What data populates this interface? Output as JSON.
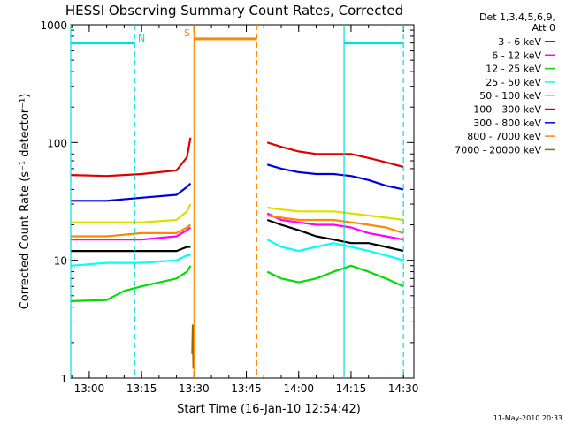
{
  "chart_data": {
    "type": "line",
    "title": "HESSI Observing Summary Count Rates, Corrected",
    "xlabel": "Start Time (16-Jan-10 12:54:42)",
    "ylabel": "Corrected Count Rate (s⁻¹ detector⁻¹)",
    "y_scale": "log",
    "ylim": [
      1,
      1000
    ],
    "xlim_minutes": [
      12.9,
      14.55
    ],
    "x_ticks": [
      {
        "value": "13:00",
        "label": "13:00"
      },
      {
        "value": "13:15",
        "label": "13:15"
      },
      {
        "value": "13:30",
        "label": "13:30"
      },
      {
        "value": "13:45",
        "label": "13:45"
      },
      {
        "value": "14:00",
        "label": "14:00"
      },
      {
        "value": "14:15",
        "label": "14:15"
      },
      {
        "value": "14:30",
        "label": "14:30"
      }
    ],
    "y_ticks": [
      {
        "value": 1,
        "label": "1"
      },
      {
        "value": 10,
        "label": "10"
      },
      {
        "value": 100,
        "label": "100"
      },
      {
        "value": 1000,
        "label": "1000"
      }
    ],
    "legend_header": [
      "Det 1,3,4,5,6,9,",
      "Att 0"
    ],
    "series": [
      {
        "name": "3 - 6 keV",
        "color": "#000000",
        "segments": [
          [
            [
              "12:54:42",
              12
            ],
            [
              "13:05",
              12
            ],
            [
              "13:15",
              12
            ],
            [
              "13:25",
              12
            ],
            [
              "13:28",
              13
            ],
            [
              "13:29",
              13
            ]
          ],
          [
            [
              "13:51",
              22
            ],
            [
              "13:55",
              20
            ],
            [
              "14:00",
              18
            ],
            [
              "14:05",
              16
            ],
            [
              "14:10",
              15
            ],
            [
              "14:15",
              14
            ],
            [
              "14:20",
              14
            ],
            [
              "14:25",
              13
            ],
            [
              "14:30",
              12
            ]
          ]
        ]
      },
      {
        "name": "6 - 12 keV",
        "color": "#ff00ff",
        "segments": [
          [
            [
              "12:54:42",
              15
            ],
            [
              "13:05",
              15
            ],
            [
              "13:15",
              15
            ],
            [
              "13:25",
              16
            ],
            [
              "13:28",
              18
            ],
            [
              "13:29",
              19
            ]
          ],
          [
            [
              "13:51",
              25
            ],
            [
              "13:55",
              22
            ],
            [
              "14:00",
              21
            ],
            [
              "14:05",
              20
            ],
            [
              "14:10",
              20
            ],
            [
              "14:15",
              19
            ],
            [
              "14:20",
              17
            ],
            [
              "14:25",
              16
            ],
            [
              "14:30",
              15
            ]
          ]
        ]
      },
      {
        "name": "12 - 25 keV",
        "color": "#00dd00",
        "segments": [
          [
            [
              "12:54:42",
              4.5
            ],
            [
              "13:05",
              4.6
            ],
            [
              "13:10",
              5.5
            ],
            [
              "13:15",
              6
            ],
            [
              "13:25",
              7
            ],
            [
              "13:28",
              8
            ],
            [
              "13:29",
              9
            ]
          ],
          [
            [
              "13:51",
              8
            ],
            [
              "13:55",
              7
            ],
            [
              "14:00",
              6.5
            ],
            [
              "14:05",
              7
            ],
            [
              "14:10",
              8
            ],
            [
              "14:15",
              9
            ],
            [
              "14:20",
              8
            ],
            [
              "14:25",
              7
            ],
            [
              "14:30",
              6
            ]
          ]
        ]
      },
      {
        "name": "25 - 50 keV",
        "color": "#00ffff",
        "segments": [
          [
            [
              "12:54:42",
              9
            ],
            [
              "13:05",
              9.5
            ],
            [
              "13:15",
              9.5
            ],
            [
              "13:25",
              10
            ],
            [
              "13:28",
              11
            ],
            [
              "13:29",
              11
            ]
          ],
          [
            [
              "13:51",
              15
            ],
            [
              "13:55",
              13
            ],
            [
              "14:00",
              12
            ],
            [
              "14:05",
              13
            ],
            [
              "14:10",
              14
            ],
            [
              "14:15",
              13
            ],
            [
              "14:20",
              12
            ],
            [
              "14:25",
              11
            ],
            [
              "14:30",
              10
            ]
          ]
        ]
      },
      {
        "name": "50 - 100 keV",
        "color": "#dddd00",
        "segments": [
          [
            [
              "12:54:42",
              21
            ],
            [
              "13:05",
              21
            ],
            [
              "13:15",
              21
            ],
            [
              "13:25",
              22
            ],
            [
              "13:28",
              26
            ],
            [
              "13:29",
              30
            ]
          ],
          [
            [
              "13:51",
              28
            ],
            [
              "13:55",
              27
            ],
            [
              "14:00",
              26
            ],
            [
              "14:05",
              26
            ],
            [
              "14:10",
              26
            ],
            [
              "14:15",
              25
            ],
            [
              "14:20",
              24
            ],
            [
              "14:25",
              23
            ],
            [
              "14:30",
              22
            ]
          ]
        ]
      },
      {
        "name": "100 - 300 keV",
        "color": "#dd0000",
        "segments": [
          [
            [
              "12:54:42",
              53
            ],
            [
              "13:05",
              52
            ],
            [
              "13:15",
              54
            ],
            [
              "13:25",
              58
            ],
            [
              "13:28",
              75
            ],
            [
              "13:29",
              110
            ]
          ],
          [
            [
              "13:51",
              100
            ],
            [
              "13:55",
              92
            ],
            [
              "14:00",
              84
            ],
            [
              "14:05",
              80
            ],
            [
              "14:10",
              80
            ],
            [
              "14:15",
              80
            ],
            [
              "14:20",
              74
            ],
            [
              "14:25",
              68
            ],
            [
              "14:30",
              62
            ]
          ]
        ]
      },
      {
        "name": "300 - 800 keV",
        "color": "#0000dd",
        "segments": [
          [
            [
              "12:54:42",
              32
            ],
            [
              "13:05",
              32
            ],
            [
              "13:15",
              34
            ],
            [
              "13:25",
              36
            ],
            [
              "13:28",
              42
            ],
            [
              "13:29",
              45
            ]
          ],
          [
            [
              "13:51",
              65
            ],
            [
              "13:55",
              60
            ],
            [
              "14:00",
              56
            ],
            [
              "14:05",
              54
            ],
            [
              "14:10",
              54
            ],
            [
              "14:15",
              52
            ],
            [
              "14:20",
              48
            ],
            [
              "14:25",
              43
            ],
            [
              "14:30",
              40
            ]
          ]
        ]
      },
      {
        "name": "800 - 7000 keV",
        "color": "#ff8800",
        "segments": [
          [
            [
              "12:54:42",
              16
            ],
            [
              "13:05",
              16
            ],
            [
              "13:15",
              17
            ],
            [
              "13:25",
              17
            ],
            [
              "13:28",
              19
            ],
            [
              "13:29",
              20
            ]
          ],
          [
            [
              "13:51",
              24
            ],
            [
              "13:55",
              23
            ],
            [
              "14:00",
              22
            ],
            [
              "14:05",
              22
            ],
            [
              "14:10",
              22
            ],
            [
              "14:15",
              21
            ],
            [
              "14:20",
              20
            ],
            [
              "14:25",
              19
            ],
            [
              "14:30",
              17
            ]
          ]
        ]
      },
      {
        "name": "7000 - 20000 keV",
        "color": "#996600",
        "segments": [
          [
            [
              "13:29:30",
              1.6
            ],
            [
              "13:29:40",
              2.8
            ],
            [
              "13:29:50",
              1.2
            ]
          ]
        ]
      }
    ],
    "annotations": [
      {
        "type": "bar",
        "label": "",
        "color": "#00dddd",
        "y": 700,
        "x_start": "12:54:42",
        "x_end": "13:13"
      },
      {
        "type": "label",
        "label": "N",
        "color": "#00dddd",
        "x": "13:15",
        "y": 720
      },
      {
        "type": "bar",
        "label": "",
        "color": "#ff8800",
        "y": 760,
        "x_start": "13:30",
        "x_end": "13:48"
      },
      {
        "type": "label",
        "label": "S",
        "color": "#ff8800",
        "x": "13:28",
        "y": 800
      },
      {
        "type": "bar",
        "label": "",
        "color": "#00dddd",
        "y": 700,
        "x_start": "14:13",
        "x_end": "14:30"
      },
      {
        "type": "vline",
        "label": "",
        "color": "#00dddd",
        "style": "solid",
        "x": "12:54:42"
      },
      {
        "type": "vline",
        "label": "",
        "color": "#00dddd",
        "style": "dashed",
        "x": "13:13"
      },
      {
        "type": "vline",
        "label": "",
        "color": "#ff8800",
        "style": "solid",
        "x": "13:30"
      },
      {
        "type": "vline",
        "label": "",
        "color": "#ff8800",
        "style": "dashed",
        "x": "13:48"
      },
      {
        "type": "vline",
        "label": "",
        "color": "#00dddd",
        "style": "solid",
        "x": "14:13"
      },
      {
        "type": "vline",
        "label": "",
        "color": "#00dddd",
        "style": "dashed",
        "x": "14:30"
      }
    ],
    "footer": "11-May-2010 20:33"
  }
}
